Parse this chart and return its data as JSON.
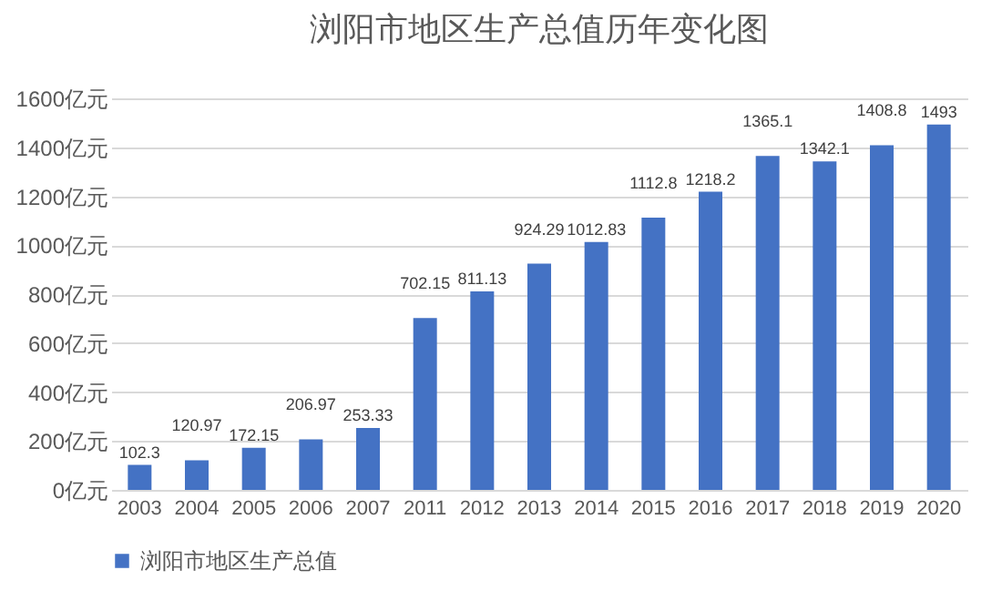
{
  "chart_data": {
    "type": "bar",
    "title": "浏阳市地区生产总值历年变化图",
    "categories": [
      "2003",
      "2004",
      "2005",
      "2006",
      "2007",
      "2011",
      "2012",
      "2013",
      "2014",
      "2015",
      "2016",
      "2017",
      "2018",
      "2019",
      "2020"
    ],
    "series": [
      {
        "name": "浏阳市地区生产总值",
        "color": "#4472c4",
        "values": [
          102.3,
          120.97,
          172.15,
          206.97,
          253.33,
          702.15,
          811.13,
          924.29,
          1012.83,
          1112.8,
          1218.2,
          1365.1,
          1342.1,
          1408.8,
          1493
        ]
      }
    ],
    "ylim": [
      0,
      1600
    ],
    "yticks": [
      {
        "value": 0,
        "label": "0亿元"
      },
      {
        "value": 200,
        "label": "200亿元"
      },
      {
        "value": 400,
        "label": "400亿元"
      },
      {
        "value": 600,
        "label": "600亿元"
      },
      {
        "value": 800,
        "label": "800亿元"
      },
      {
        "value": 1000,
        "label": "1000亿元"
      },
      {
        "value": 1200,
        "label": "1200亿元"
      },
      {
        "value": 1400,
        "label": "1400亿元"
      },
      {
        "value": 1600,
        "label": "1600亿元"
      }
    ],
    "grid": "y",
    "legend": "bottom",
    "data_labels": true
  }
}
